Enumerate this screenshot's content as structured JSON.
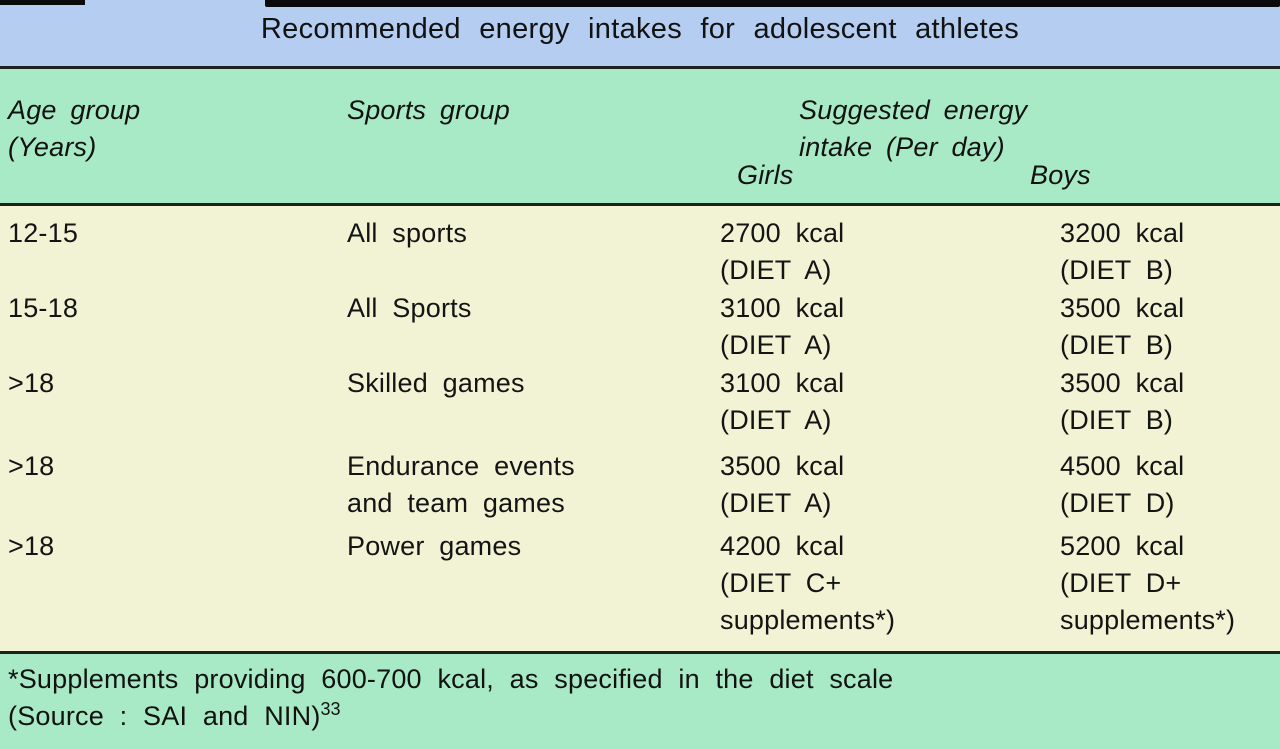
{
  "title": "Recommended energy intakes for adolescent athletes",
  "colors": {
    "title_band": "#b4cdf0",
    "header_band": "#a8eac5",
    "body_band": "#f1f3d4",
    "footer_band": "#a8eac5",
    "rule": "#1d221d",
    "text": "#141414"
  },
  "table": {
    "headers": {
      "age": [
        "Age group",
        "(Years)"
      ],
      "sports": "Sports group",
      "energy": [
        "Suggested energy",
        "intake (Per day)"
      ],
      "girls": "Girls",
      "boys": "Boys"
    },
    "rows": [
      {
        "age": "12-15",
        "sports": [
          "All sports"
        ],
        "girls": [
          "2700 kcal",
          "(DIET A)"
        ],
        "boys": [
          "3200 kcal",
          "(DIET B)"
        ]
      },
      {
        "age": "15-18",
        "sports": [
          "All Sports"
        ],
        "girls": [
          "3100 kcal",
          "(DIET A)"
        ],
        "boys": [
          "3500 kcal",
          "(DIET B)"
        ]
      },
      {
        "age": ">18",
        "sports": [
          "Skilled games"
        ],
        "girls": [
          "3100 kcal",
          "(DIET A)"
        ],
        "boys": [
          "3500 kcal",
          "(DIET B)"
        ]
      },
      {
        "age": ">18",
        "sports": [
          "Endurance events",
          "and team games"
        ],
        "girls": [
          "3500 kcal",
          "(DIET A)"
        ],
        "boys": [
          "4500 kcal",
          "(DIET D)"
        ]
      },
      {
        "age": ">18",
        "sports": [
          "Power games"
        ],
        "girls": [
          "4200 kcal",
          "(DIET C+",
          "supplements*)"
        ],
        "boys": [
          "5200 kcal",
          "(DIET D+",
          "supplements*)"
        ]
      }
    ]
  },
  "footer": {
    "note": "*Supplements providing 600-700 kcal, as specified in the diet scale",
    "source": "(Source : SAI and NIN)",
    "source_sup": "33"
  }
}
